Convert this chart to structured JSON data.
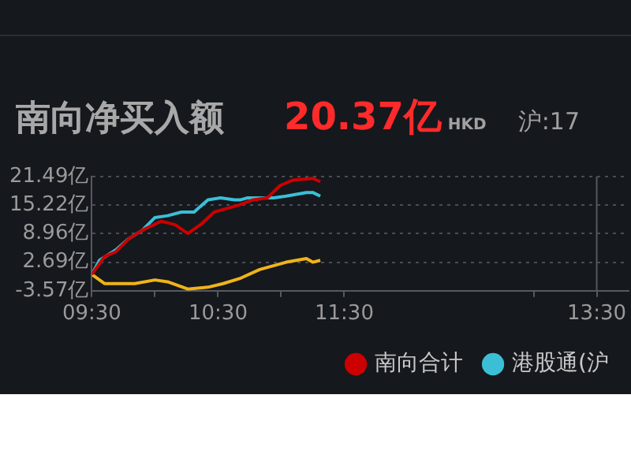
{
  "chart_data": {
    "type": "line",
    "title": "南向净买入额",
    "subtitle": "20.37亿",
    "annotations": [
      "HKD",
      "沪:17"
    ],
    "xlim": [
      9.5,
      13.75
    ],
    "xticks": [
      {
        "value": 9.5,
        "label": "09:30"
      },
      {
        "value": 10,
        "label": null
      },
      {
        "value": 10.5,
        "label": "10:30"
      },
      {
        "value": 11,
        "label": null
      },
      {
        "value": 11.5,
        "label": "11:30"
      },
      {
        "value": 13,
        "label": null
      },
      {
        "value": 13.5,
        "label": "13:30"
      }
    ],
    "ylim": [
      -3.57,
      21.49
    ],
    "yticks": [
      {
        "value": -3.57,
        "label": "-3.57亿"
      },
      {
        "value": 2.69,
        "label": "2.69亿"
      },
      {
        "value": 8.96,
        "label": "8.96亿"
      },
      {
        "value": 15.22,
        "label": "15.22亿"
      },
      {
        "value": 21.49,
        "label": "21.49亿"
      }
    ],
    "grid": "y",
    "legend": "bottom",
    "marker": "none",
    "line_style": "solid",
    "ref_lines": [
      {
        "axis": "x",
        "value": 13.5,
        "label": null,
        "color": "#555a60"
      }
    ],
    "series": [
      {
        "name": "南向合计",
        "color": "#cc0000",
        "x": [
          9.5,
          9.6,
          9.69,
          9.79,
          9.9,
          10.05,
          10.16,
          10.26,
          10.36,
          10.47,
          10.52,
          10.66,
          10.78,
          10.89,
          10.99,
          11.09,
          11.25,
          11.31
        ],
        "values": [
          0,
          3.9,
          5.0,
          7.8,
          9.7,
          11.7,
          10.9,
          9.0,
          10.9,
          13.7,
          14.1,
          15.2,
          16.4,
          16.8,
          19.5,
          20.7,
          21.1,
          20.37
        ]
      },
      {
        "name": "港股通(沪",
        "color": "#3bbfd6",
        "x": [
          9.5,
          9.56,
          9.69,
          9.79,
          9.9,
          10.0,
          10.1,
          10.21,
          10.31,
          10.42,
          10.52,
          10.63,
          10.68,
          10.73,
          10.94,
          11.04,
          11.2,
          11.25,
          11.31
        ],
        "values": [
          0,
          3.1,
          5.4,
          7.8,
          9.7,
          12.5,
          12.9,
          13.7,
          13.7,
          16.4,
          16.8,
          16.4,
          16.4,
          16.8,
          16.8,
          17.2,
          18.0,
          18.0,
          17.2
        ]
      },
      {
        "color": "#f0b418",
        "x": [
          9.5,
          9.6,
          9.84,
          10.0,
          10.1,
          10.26,
          10.42,
          10.54,
          10.68,
          10.83,
          11.04,
          11.2,
          11.25,
          11.31
        ],
        "values": [
          0,
          -2.0,
          -2.0,
          -1.2,
          -1.6,
          -3.2,
          -2.8,
          -2.0,
          -0.8,
          1.1,
          2.7,
          3.5,
          2.7,
          3.1
        ]
      }
    ]
  }
}
